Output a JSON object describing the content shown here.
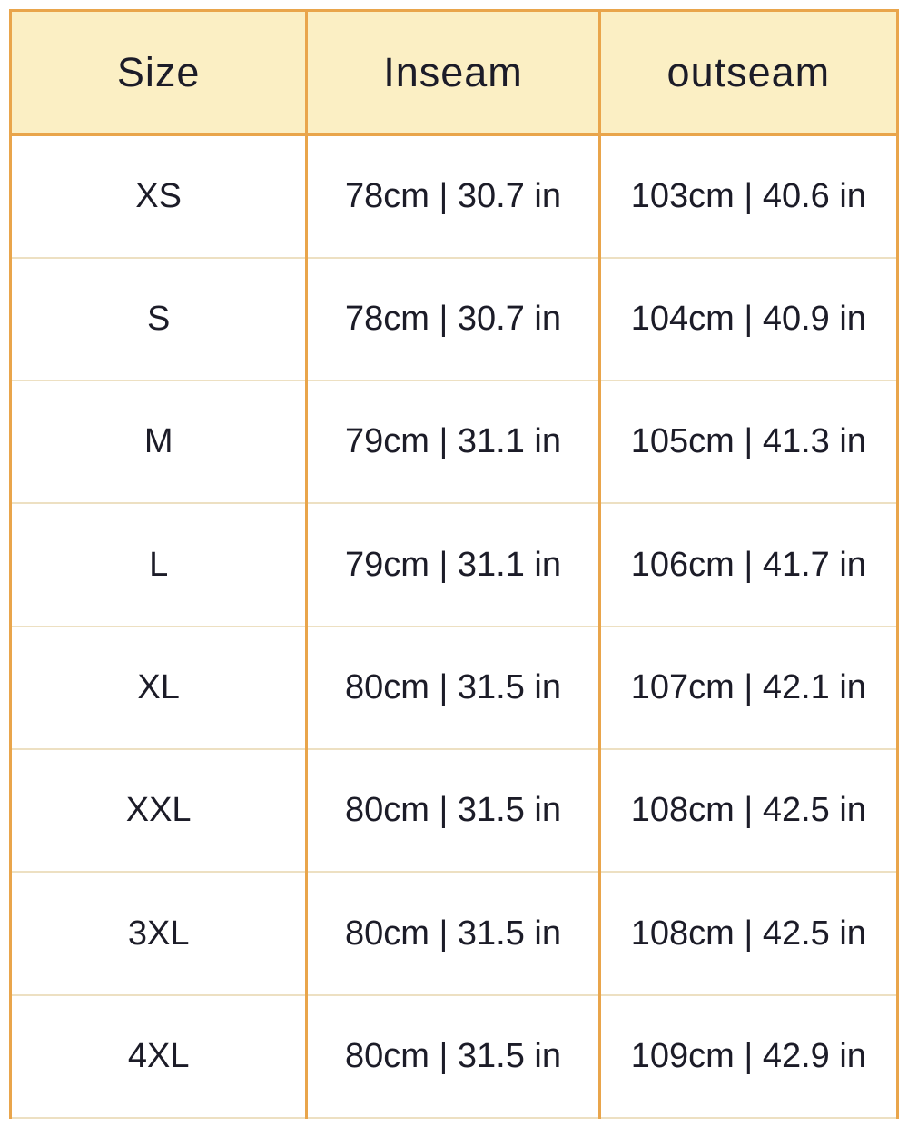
{
  "size_chart": {
    "columns": [
      "Size",
      "Inseam",
      "outseam"
    ],
    "rows": [
      {
        "size": "XS",
        "inseam": "78cm | 30.7 in",
        "outseam": "103cm | 40.6 in"
      },
      {
        "size": "S",
        "inseam": "78cm | 30.7 in",
        "outseam": "104cm | 40.9 in"
      },
      {
        "size": "M",
        "inseam": "79cm | 31.1 in",
        "outseam": "105cm | 41.3 in"
      },
      {
        "size": "L",
        "inseam": "79cm | 31.1 in",
        "outseam": "106cm | 41.7 in"
      },
      {
        "size": "XL",
        "inseam": "80cm | 31.5 in",
        "outseam": "107cm | 42.1 in"
      },
      {
        "size": "XXL",
        "inseam": "80cm | 31.5 in",
        "outseam": "108cm | 42.5 in"
      },
      {
        "size": "3XL",
        "inseam": "80cm | 31.5 in",
        "outseam": "108cm | 42.5 in"
      },
      {
        "size": "4XL",
        "inseam": "80cm | 31.5 in",
        "outseam": "109cm | 42.9 in"
      }
    ]
  },
  "chart_data": {
    "type": "table",
    "title": "",
    "columns": [
      "Size",
      "Inseam",
      "outseam"
    ],
    "rows": [
      [
        "XS",
        "78cm | 30.7 in",
        "103cm | 40.6 in"
      ],
      [
        "S",
        "78cm | 30.7 in",
        "104cm | 40.9 in"
      ],
      [
        "M",
        "79cm | 31.1 in",
        "105cm | 41.3 in"
      ],
      [
        "L",
        "79cm | 31.1 in",
        "106cm | 41.7 in"
      ],
      [
        "XL",
        "80cm | 31.5 in",
        "107cm | 42.1 in"
      ],
      [
        "XXL",
        "80cm | 31.5 in",
        "108cm | 42.5 in"
      ],
      [
        "3XL",
        "80cm | 31.5 in",
        "108cm | 42.5 in"
      ],
      [
        "4XL",
        "80cm | 31.5 in",
        "109cm | 42.9 in"
      ]
    ],
    "numeric": {
      "sizes": [
        "XS",
        "S",
        "M",
        "L",
        "XL",
        "XXL",
        "3XL",
        "4XL"
      ],
      "inseam_cm": [
        78,
        78,
        79,
        79,
        80,
        80,
        80,
        80
      ],
      "inseam_in": [
        30.7,
        30.7,
        31.1,
        31.1,
        31.5,
        31.5,
        31.5,
        31.5
      ],
      "outseam_cm": [
        103,
        104,
        105,
        106,
        107,
        108,
        108,
        109
      ],
      "outseam_in": [
        40.6,
        40.9,
        41.3,
        41.7,
        42.1,
        42.5,
        42.5,
        42.9
      ]
    }
  },
  "colors": {
    "header_background": "#FBEFC4",
    "border_accent": "#E9A54B",
    "row_divider": "#EDE0C2",
    "text": "#1C1C28",
    "page_background": "#FFFFFF"
  }
}
